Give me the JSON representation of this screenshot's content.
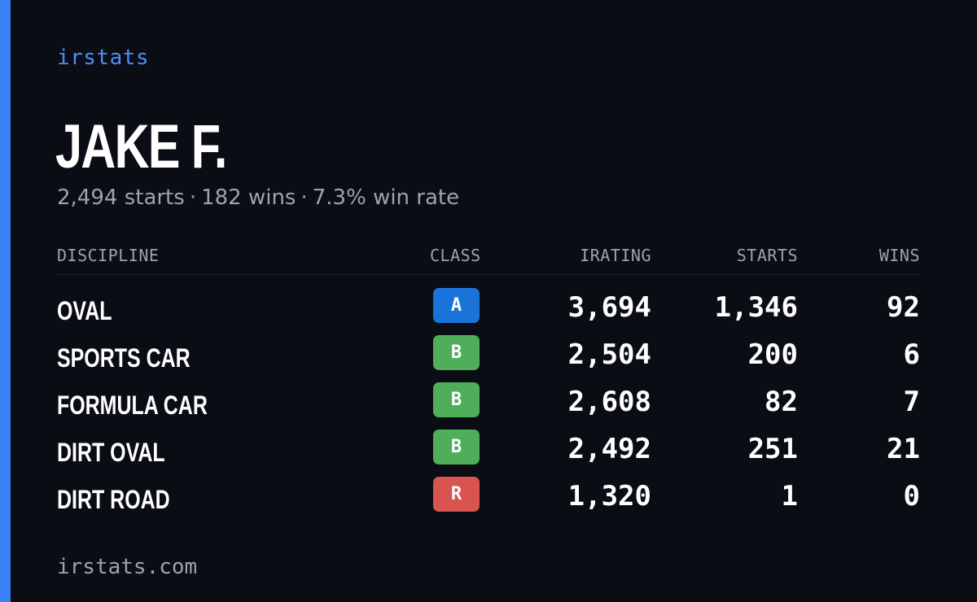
{
  "brand": "irstats",
  "driver": {
    "name": "JAKE F."
  },
  "summary": {
    "starts": "2,494 starts",
    "wins": "182 wins",
    "win_rate": "7.3% win rate",
    "separator": "·"
  },
  "table": {
    "headers": {
      "discipline": "DISCIPLINE",
      "class": "CLASS",
      "irating": "IRATING",
      "starts": "STARTS",
      "wins": "WINS"
    },
    "rows": [
      {
        "discipline": "OVAL",
        "class": "A",
        "class_color": "#1a73d9",
        "irating": "3,694",
        "starts": "1,346",
        "wins": "92"
      },
      {
        "discipline": "SPORTS CAR",
        "class": "B",
        "class_color": "#4fae5a",
        "irating": "2,504",
        "starts": "200",
        "wins": "6"
      },
      {
        "discipline": "FORMULA CAR",
        "class": "B",
        "class_color": "#4fae5a",
        "irating": "2,608",
        "starts": "82",
        "wins": "7"
      },
      {
        "discipline": "DIRT OVAL",
        "class": "B",
        "class_color": "#4fae5a",
        "irating": "2,492",
        "starts": "251",
        "wins": "21"
      },
      {
        "discipline": "DIRT ROAD",
        "class": "R",
        "class_color": "#d9534f",
        "irating": "1,320",
        "starts": "1",
        "wins": "0"
      }
    ]
  },
  "footer": "irstats.com",
  "colors": {
    "accent": "#3b82f6",
    "background": "#0a0d14",
    "muted": "#9ca3af"
  }
}
